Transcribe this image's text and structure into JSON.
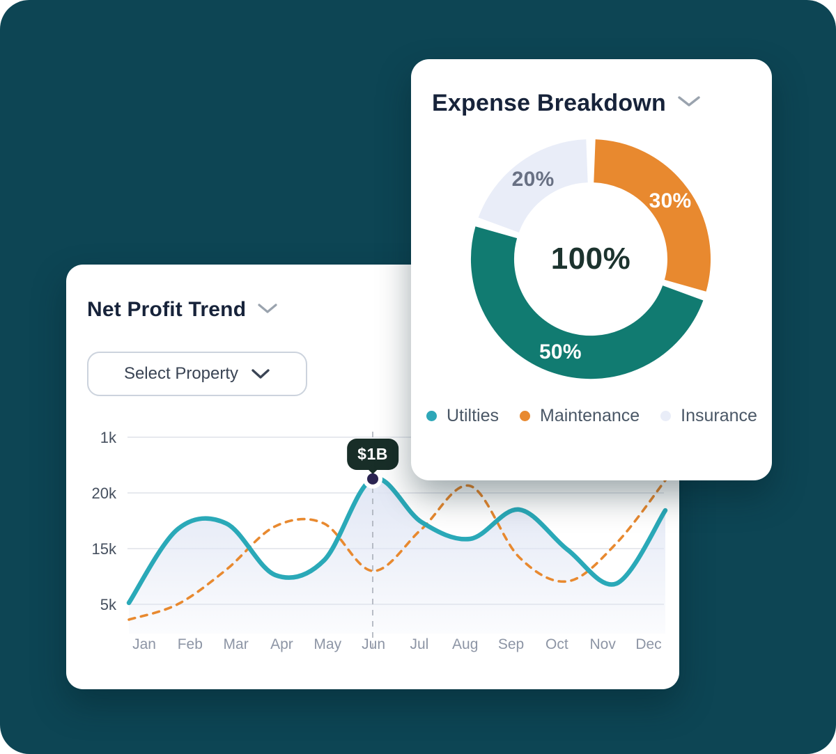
{
  "page": {
    "background_color": "#0d4554"
  },
  "expense_card": {
    "title": "Expense Breakdown",
    "chevron_icon": "chevron-down"
  },
  "profit_card": {
    "title": "Net Profit Trend",
    "chevron_icon": "chevron-down",
    "select_property_label": "Select Property"
  },
  "chart_data": [
    {
      "type": "pie",
      "subtype": "donut",
      "title": "Expense Breakdown",
      "center_label": "100%",
      "start_angle_deg": 0,
      "direction": "clockwise",
      "slices": [
        {
          "name": "Maintenance",
          "value": 30,
          "label": "30%",
          "color": "#e8892f",
          "label_color": "#ffffff"
        },
        {
          "name": "Utilties",
          "value": 50,
          "label": "50%",
          "color": "#117b71",
          "label_color": "#ffffff"
        },
        {
          "name": "Insurance",
          "value": 20,
          "label": "20%",
          "color": "#e9edf8",
          "label_color": "#687083"
        }
      ],
      "legend_position": "bottom",
      "legend": [
        {
          "name": "Utilties",
          "color": "#2ea7b8"
        },
        {
          "name": "Maintenance",
          "color": "#e8892f"
        },
        {
          "name": "Insurance",
          "color": "#e9edf8"
        }
      ]
    },
    {
      "type": "line",
      "title": "Net Profit Trend",
      "x": [
        "Jan",
        "Feb",
        "Mar",
        "Apr",
        "May",
        "Jun",
        "Jul",
        "Aug",
        "Sep",
        "Oct",
        "Nov",
        "Dec"
      ],
      "yticks_top_to_bottom": [
        "1k",
        "20k",
        "15k",
        "5k"
      ],
      "grid": "horizontal",
      "series": [
        {
          "name": "net-profit-solid",
          "color": "#2aa9b8",
          "style": "solid",
          "area_fill": "#dfe5f4",
          "values_pct_of_plot_height": [
            15.2,
            51.7,
            54.5,
            29.0,
            36.2,
            76.6,
            55.2,
            46.9,
            61.4,
            41.4,
            24.8,
            61.0
          ]
        },
        {
          "name": "comparison-dashed",
          "color": "#e8892f",
          "style": "dashed",
          "values_pct_of_plot_height": [
            6.9,
            14.5,
            31.7,
            53.1,
            54.5,
            31.0,
            51.7,
            73.1,
            37.9,
            25.9,
            44.8,
            75.9
          ]
        }
      ],
      "tooltip": {
        "month": "Jun",
        "label": "$1B",
        "marker_color": "#2a2351",
        "bg_color": "#182e28"
      }
    }
  ]
}
